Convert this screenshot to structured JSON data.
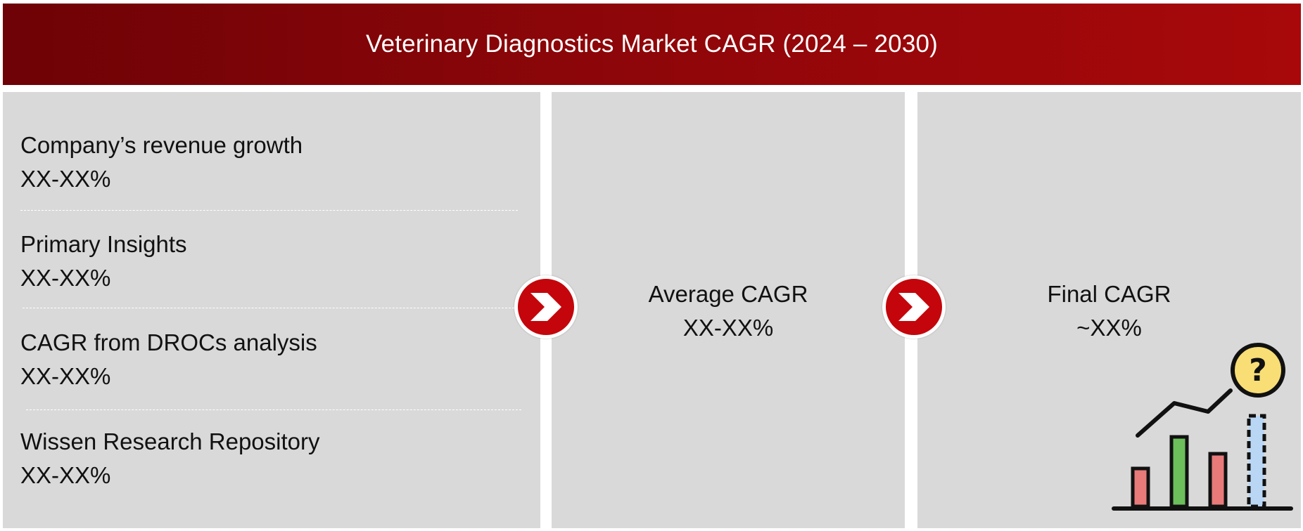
{
  "header": {
    "title": "Veterinary Diagnostics Market CAGR (2024 – 2030)"
  },
  "sources": [
    {
      "label": "Company’s revenue growth",
      "value": "XX-XX%"
    },
    {
      "label": "Primary Insights",
      "value": "XX-XX%"
    },
    {
      "label": "CAGR from DROCs analysis",
      "value": "XX-XX%"
    },
    {
      "label": "Wissen Research Repository",
      "value": "XX-XX%"
    }
  ],
  "average": {
    "label": "Average CAGR",
    "value": "XX-XX%"
  },
  "final": {
    "label": "Final CAGR",
    "value": "~XX%"
  },
  "icons": {
    "flow_arrow": "chevron-right-icon",
    "illustration": "growth-chart-question-icon",
    "question_mark": "?"
  },
  "colors": {
    "header_dark": "#6e0206",
    "header_light": "#a8080a",
    "panel": "#d9d9d9",
    "arrow": "#c4050b",
    "bar_red": "#e87a7a",
    "bar_green": "#6cbf5b",
    "bar_blue": "#b9d6f5",
    "question_badge": "#f8de75"
  }
}
